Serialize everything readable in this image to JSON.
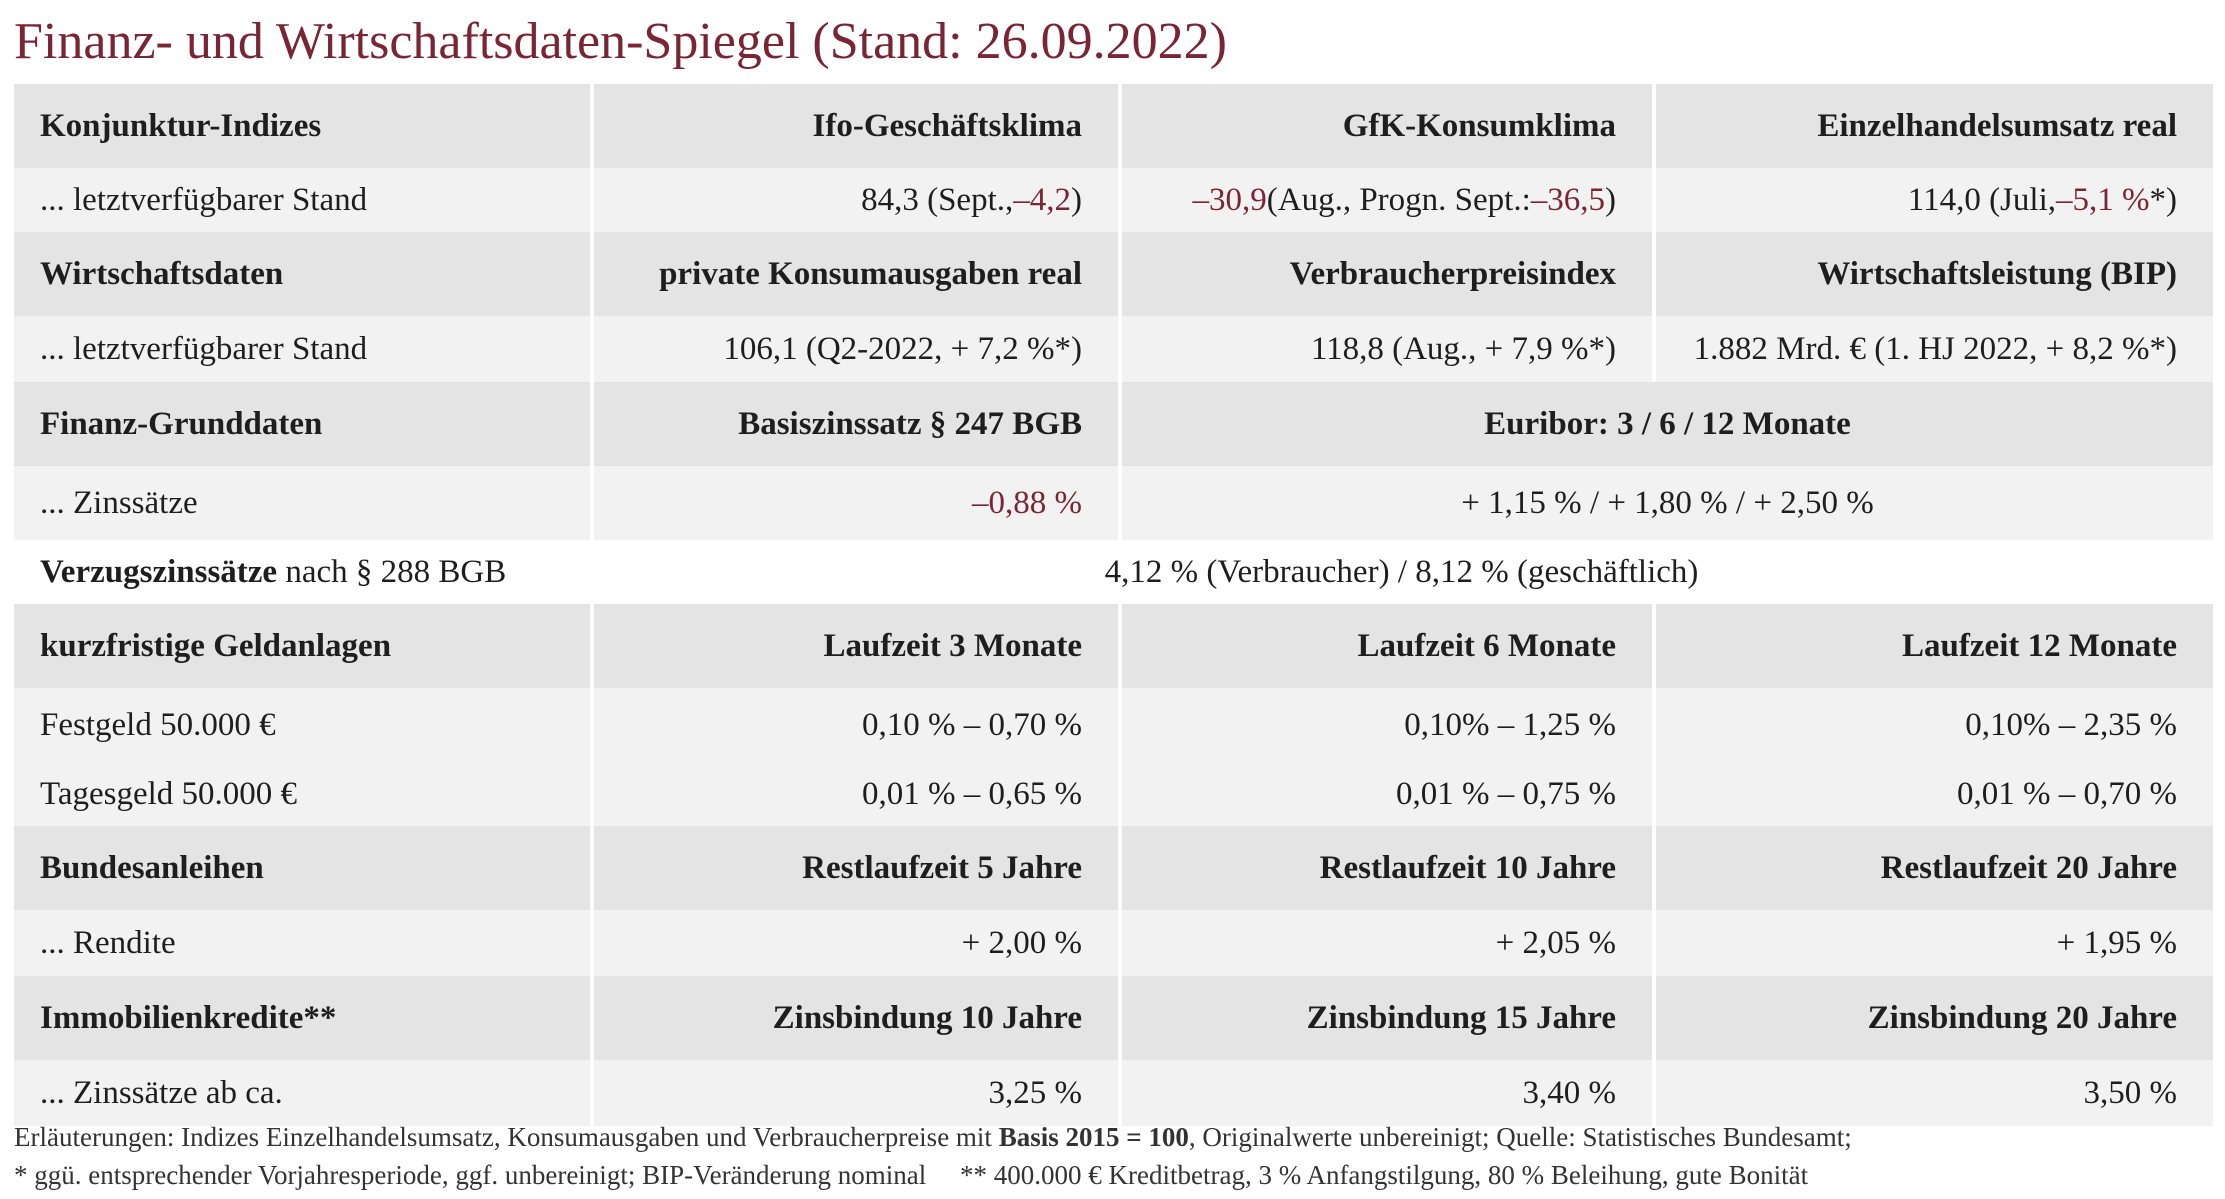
{
  "title": "Finanz- und Wirtschaftsdaten-Spiegel (Stand: 26.09.2022)",
  "konjunktur": {
    "header": [
      "Konjunktur-Indizes",
      "Ifo-Geschäftsklima",
      "GfK-Konsumklima",
      "Einzelhandelsumsatz real"
    ],
    "row_label": "... letztverfügbarer Stand",
    "ifo": {
      "pre": "84,3 (Sept., ",
      "red": "–4,2",
      "post": ")"
    },
    "gfk": {
      "red1": "–30,9",
      "mid": " (Aug., Progn. Sept.: ",
      "red2": "–36,5",
      "post": ")"
    },
    "einzel": {
      "pre": "114,0 (Juli, ",
      "red": "–5,1 %",
      "post": "*)"
    }
  },
  "wirtschaft": {
    "header": [
      "Wirtschaftsdaten",
      "private Konsumausgaben real",
      "Verbraucherpreisindex",
      "Wirtschaftsleistung (BIP)"
    ],
    "row_label": "... letztverfügbarer Stand",
    "values": [
      "106,1 (Q2-2022, + 7,2 %*)",
      "118,8 (Aug., + 7,9 %*)",
      "1.882 Mrd. € (1. HJ 2022, + 8,2 %*)"
    ]
  },
  "finanz": {
    "header": [
      "Finanz-Grunddaten",
      "Basiszinssatz § 247 BGB",
      "Euribor: 3 / 6 / 12 Monate"
    ],
    "row_label": "... Zinssätze",
    "basiszins": "–0,88 %",
    "euribor": "+ 1,15 % / + 1,80 % / + 2,50 %"
  },
  "verzug": {
    "label_bold": "Verzugszinssätze",
    "label_rest": " nach § 288 BGB",
    "value": "4,12 % (Verbraucher) / 8,12 % (geschäftlich)"
  },
  "geldanlagen": {
    "header": [
      "kurzfristige Geldanlagen",
      "Laufzeit 3 Monate",
      "Laufzeit 6 Monate",
      "Laufzeit 12 Monate"
    ],
    "rows": [
      {
        "label": "Festgeld 50.000 €",
        "values": [
          "0,10 % – 0,70 %",
          "0,10% – 1,25 %",
          "0,10% – 2,35 %"
        ]
      },
      {
        "label": "Tagesgeld 50.000 €",
        "values": [
          "0,01 % – 0,65 %",
          "0,01 % – 0,75 %",
          "0,01 % – 0,70 %"
        ]
      }
    ]
  },
  "anleihen": {
    "header": [
      "Bundesanleihen",
      "Restlaufzeit 5 Jahre",
      "Restlaufzeit 10 Jahre",
      "Restlaufzeit 20 Jahre"
    ],
    "row_label": "... Rendite",
    "values": [
      "+ 2,00 %",
      "+ 2,05 %",
      "+ 1,95 %"
    ]
  },
  "immo": {
    "header": [
      "Immobilienkredite**",
      "Zinsbindung 10 Jahre",
      "Zinsbindung 15 Jahre",
      "Zinsbindung 20 Jahre"
    ],
    "row_label": "... Zinssätze ab ca.",
    "values": [
      "3,25 %",
      "3,40 %",
      "3,50 %"
    ]
  },
  "notes": {
    "line1_pre": "Erläuterungen: Indizes Einzelhandelsumsatz, Konsumausgaben und Verbraucherpreise mit ",
    "line1_bold": "Basis 2015 = 100",
    "line1_post": ", Originalwerte unbereinigt; Quelle: Statistisches Bundesamt;",
    "line2": "* ggü. entsprechender Vorjahresperiode, ggf. unbereinigt; BIP-Veränderung nominal     ** 400.000 € Kreditbetrag, 3 % Anfangstilgung, 80 % Beleihung, gute Bonität"
  },
  "colors": {
    "accent": "#7a2535",
    "header_bg": "#e4e4e4",
    "row_bg": "#f2f2f2"
  }
}
